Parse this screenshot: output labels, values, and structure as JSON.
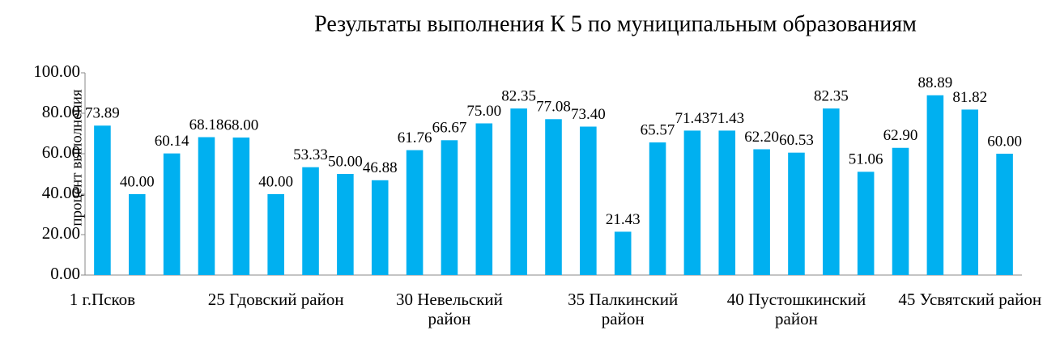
{
  "chart_data": {
    "type": "bar",
    "title": "Результаты выполнения К 5 по муниципальным образованиям",
    "y_label": "процент выполнения",
    "categories": [
      "1 г.Псков",
      null,
      null,
      null,
      null,
      "25 Гдовский район",
      null,
      null,
      null,
      null,
      "30 Невельский район",
      null,
      null,
      null,
      null,
      "35 Палкинский район",
      null,
      null,
      null,
      null,
      "40 Пустошкинский район",
      null,
      null,
      null,
      null,
      "45 Усвятский район",
      null
    ],
    "values": [
      73.89,
      40.0,
      60.14,
      68.18,
      68.0,
      40.0,
      53.33,
      50.0,
      46.88,
      61.76,
      66.67,
      75.0,
      82.35,
      77.08,
      73.4,
      21.43,
      65.57,
      71.43,
      71.43,
      62.2,
      60.53,
      82.35,
      51.06,
      62.9,
      88.89,
      81.82,
      60.0
    ],
    "value_labels": [
      "73.89",
      "40.00",
      "60.14",
      "68.18",
      "68.00",
      "40.00",
      "53.33",
      "50.00",
      "46.88",
      "61.76",
      "66.67",
      "75.00",
      "82.35",
      "77.08",
      "73.40",
      "21.43",
      "65.57",
      "71.43",
      "71.43",
      "62.20",
      "60.53",
      "82.35",
      "51.06",
      "62.90",
      "88.89",
      "81.82",
      "60.00"
    ],
    "color": "#00b0f0",
    "ylim": [
      0,
      100
    ],
    "yticks": [
      {
        "value": 0,
        "label": "0.00"
      },
      {
        "value": 20,
        "label": "20.00"
      },
      {
        "value": 40,
        "label": "40.00"
      },
      {
        "value": 60,
        "label": "60.00"
      },
      {
        "value": 80,
        "label": "80.00"
      },
      {
        "value": 100,
        "label": "100.00"
      }
    ],
    "grid": false
  }
}
